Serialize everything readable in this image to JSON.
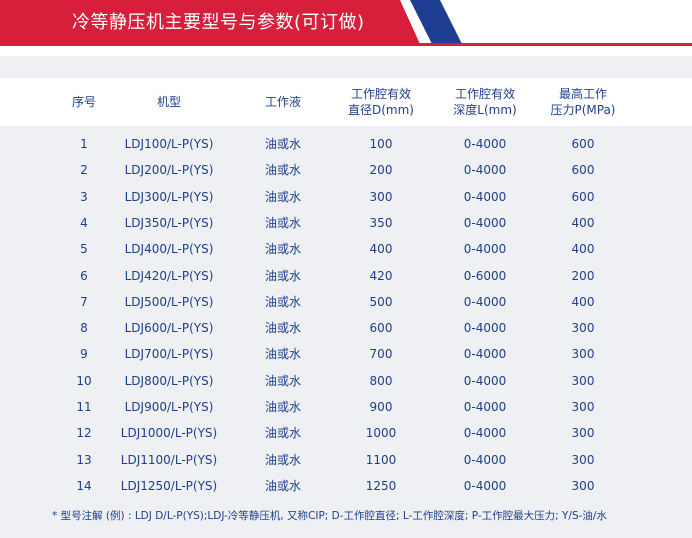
{
  "title": "冷等静压机主要型号与参数(可订做)",
  "headers": [
    "序号",
    "机型",
    "工作液",
    "工作腔有效\n直径D(mm)",
    "工作腔有效\n深度L(mm)",
    "最高工作\n压力P(MPa)"
  ],
  "rows": [
    [
      "1",
      "LDJ100/L-P(YS)",
      "油或水",
      "100",
      "0-4000",
      "600"
    ],
    [
      "2",
      "LDJ200/L-P(YS)",
      "油或水",
      "200",
      "0-4000",
      "600"
    ],
    [
      "3",
      "LDJ300/L-P(YS)",
      "油或水",
      "300",
      "0-4000",
      "600"
    ],
    [
      "4",
      "LDJ350/L-P(YS)",
      "油或水",
      "350",
      "0-4000",
      "400"
    ],
    [
      "5",
      "LDJ400/L-P(YS)",
      "油或水",
      "400",
      "0-4000",
      "400"
    ],
    [
      "6",
      "LDJ420/L-P(YS)",
      "油或水",
      "420",
      "0-6000",
      "200"
    ],
    [
      "7",
      "LDJ500/L-P(YS)",
      "油或水",
      "500",
      "0-4000",
      "400"
    ],
    [
      "8",
      "LDJ600/L-P(YS)",
      "油或水",
      "600",
      "0-4000",
      "300"
    ],
    [
      "9",
      "LDJ700/L-P(YS)",
      "油或水",
      "700",
      "0-4000",
      "300"
    ],
    [
      "10",
      "LDJ800/L-P(YS)",
      "油或水",
      "800",
      "0-4000",
      "300"
    ],
    [
      "11",
      "LDJ900/L-P(YS)",
      "油或水",
      "900",
      "0-4000",
      "300"
    ],
    [
      "12",
      "LDJ1000/L-P(YS)",
      "油或水",
      "1000",
      "0-4000",
      "300"
    ],
    [
      "13",
      "LDJ1100/L-P(YS)",
      "油或水",
      "1100",
      "0-4000",
      "300"
    ],
    [
      "14",
      "LDJ1250/L-P(YS)",
      "油或水",
      "1250",
      "0-4000",
      "300"
    ]
  ],
  "footnote": "* 型号注解 (例) : LDJ D/L-P(YS);LDJ-冷等静压机, 又称CIP; D-工作腔直径; L-工作腔深度; P-工作腔最大压力; Y/S-油/水",
  "colors": {
    "accent_red": "#d71f3b",
    "accent_blue": "#1e3f91",
    "text": "#1f3f8c",
    "row_bg": "#eef0f3"
  }
}
